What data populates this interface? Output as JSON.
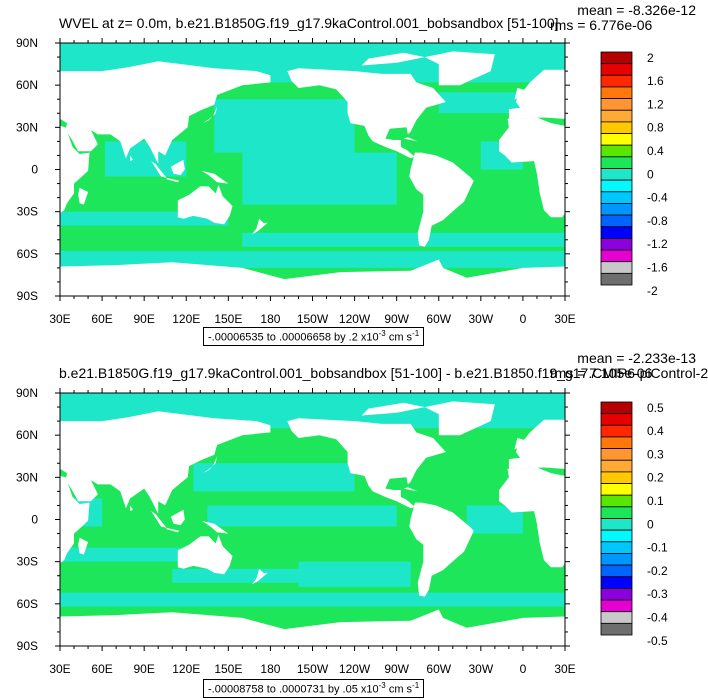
{
  "palette": [
    "#6e6e6e",
    "#c8c8c8",
    "#e600d2",
    "#8c00dc",
    "#0000ff",
    "#0064ff",
    "#0096ff",
    "#00c8ff",
    "#00faff",
    "#1ee6c8",
    "#1ee65a",
    "#5ae600",
    "#ffff00",
    "#ffc800",
    "#ffaa32",
    "#ff9632",
    "#ff780a",
    "#ff2800",
    "#e60000",
    "#b40000"
  ],
  "ocean_colors": {
    "cyan": "#1ee6c8",
    "green": "#1ee65a",
    "land": "#ffffff"
  },
  "panels": [
    {
      "title": "WVEL at z=   0.0m, b.e21.B1850G.f19_g17.9kaControl.001_bobsandbox [51-100]",
      "stats_mean": "mean = -8.326e-12",
      "stats_rms": "rms = 6.776e-06",
      "info_prefix": "-.00006535 to .00006658 by .2 x10",
      "info_exp": "-3",
      "info_unit": " cm s",
      "info_unit_exp": "-1"
    },
    {
      "title": "b.e21.B1850G.f19_g17.9kaControl.001_bobsandbox [51-100] - b.e21.B1850.f19_g17.CMIP6-piControl-2",
      "stats_mean": "mean = -2.233e-13",
      "stats_rms": "rms = 7.105e-06",
      "info_prefix": "-.00008758 to .0000731 by .05 x10",
      "info_exp": "-3",
      "info_unit": " cm s",
      "info_unit_exp": "-1"
    }
  ],
  "chart_data": [
    {
      "type": "heatmap",
      "title": "WVEL at z=   0.0m, b.e21.B1850G.f19_g17.9kaControl.001_bobsandbox [51-100]",
      "x_ticks": [
        "30E",
        "60E",
        "90E",
        "120E",
        "150E",
        "180",
        "150W",
        "120W",
        "90W",
        "60W",
        "30W",
        "0",
        "30E"
      ],
      "y_ticks": [
        "90N",
        "60N",
        "30N",
        "0",
        "30S",
        "60S",
        "90S"
      ],
      "xlim": [
        30,
        390
      ],
      "ylim": [
        -90,
        90
      ],
      "colorbar_labels": [
        "2",
        "1.6",
        "1.2",
        "0.8",
        "0.4",
        "0",
        "-0.4",
        "-0.8",
        "-1.2",
        "-1.6",
        "-2"
      ],
      "mean": -8.326e-12,
      "rms": 6.776e-06
    },
    {
      "type": "heatmap",
      "title": "b.e21.B1850G.f19_g17.9kaControl.001_bobsandbox [51-100] - b.e21.B1850.f19_g17.CMIP6-piControl-2",
      "x_ticks": [
        "30E",
        "60E",
        "90E",
        "120E",
        "150E",
        "180",
        "150W",
        "120W",
        "90W",
        "60W",
        "30W",
        "0",
        "30E"
      ],
      "y_ticks": [
        "90N",
        "60N",
        "30N",
        "0",
        "30S",
        "60S",
        "90S"
      ],
      "xlim": [
        30,
        390
      ],
      "ylim": [
        -90,
        90
      ],
      "colorbar_labels": [
        "0.5",
        "0.4",
        "0.3",
        "0.2",
        "0.1",
        "0",
        "-0.1",
        "-0.2",
        "-0.3",
        "-0.4",
        "-0.5"
      ],
      "mean": -2.233e-13,
      "rms": 7.105e-06
    }
  ]
}
